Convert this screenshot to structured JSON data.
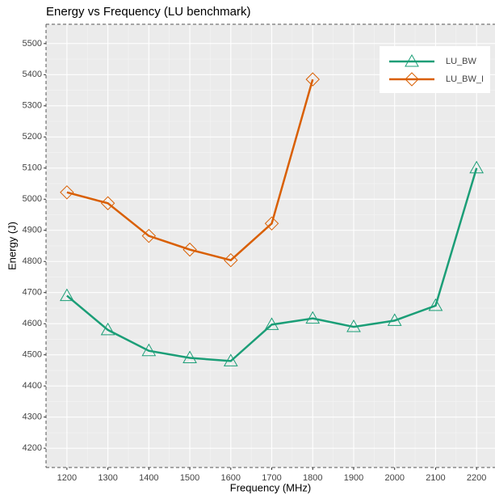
{
  "chart_data": {
    "type": "line",
    "title": "Energy vs Frequency (LU benchmark)",
    "x_label": "Frequency (MHz)",
    "y_label": "Energy (J)",
    "x": [
      1200,
      1300,
      1400,
      1500,
      1600,
      1700,
      1800,
      1900,
      2000,
      2100,
      2200
    ],
    "series": [
      {
        "name": "LU_BW",
        "color": "#1b9e77",
        "marker": "triangle",
        "values": [
          4690,
          4580,
          4513,
          4490,
          4480,
          4597,
          4617,
          4590,
          4610,
          4658,
          5100
        ]
      },
      {
        "name": "LU_BW_I",
        "color": "#d95f02",
        "marker": "diamond",
        "values": [
          5022,
          4987,
          4882,
          4838,
          4804,
          4922,
          5385,
          null,
          null,
          null,
          null
        ]
      }
    ],
    "xlim": [
      1149,
      2245
    ],
    "xticks": [
      1200,
      1300,
      1400,
      1500,
      1600,
      1700,
      1800,
      1900,
      2000,
      2100,
      2200
    ],
    "ylim": [
      4138,
      5562
    ],
    "yticks": [
      4200,
      4300,
      4400,
      4500,
      4600,
      4700,
      4800,
      4900,
      5000,
      5100,
      5200,
      5300,
      5400,
      5500
    ],
    "grid": true,
    "legend": "top-right"
  }
}
